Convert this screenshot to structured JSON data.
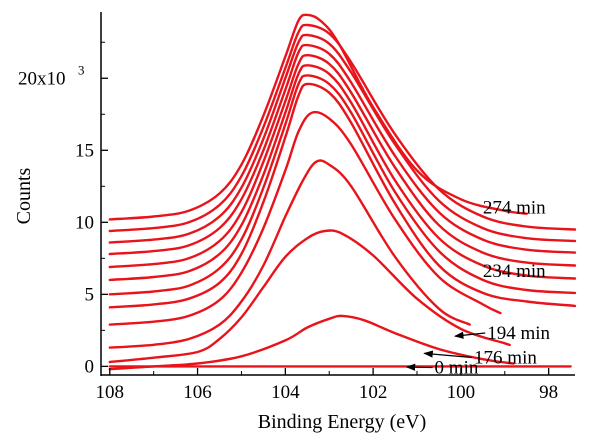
{
  "chart_data": {
    "type": "line",
    "title": "",
    "xlabel": "Binding Energy (eV)",
    "ylabel": "Counts",
    "xlim": [
      108.2,
      97.4
    ],
    "ylim": [
      -0.6,
      24.6
    ],
    "x_reversed": true,
    "grid": false,
    "line_color": "#e8141b",
    "x_ticks": [
      {
        "value": 108,
        "label": "108"
      },
      {
        "value": 106,
        "label": "106"
      },
      {
        "value": 104,
        "label": "104"
      },
      {
        "value": 102,
        "label": "102"
      },
      {
        "value": 100,
        "label": "100"
      },
      {
        "value": 98,
        "label": "98"
      }
    ],
    "y_ticks": [
      {
        "value": 0,
        "label": "0"
      },
      {
        "value": 5,
        "label": "5"
      },
      {
        "value": 10,
        "label": "10"
      },
      {
        "value": 15,
        "label": "15"
      }
    ],
    "y_top_tick": {
      "value": 20,
      "label_main": "20x10",
      "label_exp": "3"
    },
    "series": [
      {
        "x": [
          108,
          107,
          106,
          105,
          104,
          103,
          102,
          101,
          100,
          99,
          98,
          97.5
        ],
        "y": [
          0.0,
          0.0,
          0.0,
          0.0,
          0.0,
          0.0,
          0.0,
          0.0,
          0.0,
          0.0,
          0.0,
          0.0
        ]
      },
      {
        "x": [
          108,
          107,
          106,
          105,
          104,
          103.5,
          103,
          102.7,
          102.2,
          101.5,
          100.5,
          99.5,
          98.8
        ],
        "y": [
          -0.2,
          0.0,
          0.2,
          0.7,
          1.8,
          2.7,
          3.3,
          3.5,
          3.2,
          2.3,
          1.2,
          0.5,
          0.2
        ]
      },
      {
        "x": [
          108,
          107,
          106,
          105.5,
          105,
          104.5,
          104,
          103.5,
          103.1,
          102.7,
          102,
          101,
          100,
          99,
          98.9
        ],
        "y": [
          0.3,
          0.6,
          1.0,
          1.9,
          3.4,
          5.5,
          7.6,
          8.9,
          9.4,
          9.2,
          7.7,
          4.7,
          2.6,
          1.6,
          1.5
        ]
      },
      {
        "x": [
          108,
          107,
          106.2,
          105.5,
          105,
          104.5,
          104,
          103.6,
          103.3,
          103,
          102.5,
          101.5,
          100.5,
          99.8
        ],
        "y": [
          1.3,
          1.5,
          1.9,
          2.9,
          4.5,
          7.0,
          10.4,
          12.9,
          14.2,
          14.0,
          12.5,
          7.6,
          4.0,
          2.9
        ]
      },
      {
        "x": [
          108,
          107,
          106.2,
          105.5,
          105,
          104.5,
          104,
          103.7,
          103.4,
          103,
          102.5,
          101.5,
          100.5,
          99.5,
          99.1
        ],
        "y": [
          2.9,
          3.1,
          3.5,
          4.6,
          6.5,
          9.6,
          13.6,
          16.3,
          17.6,
          17.2,
          15.4,
          10.2,
          6.2,
          4.3,
          3.7
        ]
      },
      {
        "x": [
          108,
          107,
          106.2,
          105.5,
          105,
          104.5,
          104,
          103.7,
          103.5,
          103,
          102.5,
          101.5,
          100.5,
          99.5,
          98.5,
          97.4
        ],
        "y": [
          4.1,
          4.3,
          4.7,
          5.8,
          7.8,
          11.4,
          15.9,
          18.8,
          19.6,
          19.0,
          16.9,
          11.3,
          7.0,
          5.1,
          4.5,
          4.2
        ]
      },
      {
        "x": [
          108,
          107,
          106.2,
          105.5,
          105,
          104.5,
          104,
          103.7,
          103.5,
          103,
          102.5,
          101.5,
          100.5,
          99.5,
          98.5,
          97.4
        ],
        "y": [
          5.0,
          5.2,
          5.6,
          6.8,
          8.8,
          12.4,
          16.8,
          19.6,
          20.2,
          19.6,
          17.6,
          12.1,
          8.0,
          6.0,
          5.3,
          5.1
        ]
      },
      {
        "x": [
          108,
          107,
          106.2,
          105.5,
          105,
          104.5,
          104,
          103.7,
          103.5,
          103,
          102.5,
          101.5,
          100.5,
          99.5,
          98.5,
          97.4
        ],
        "y": [
          6.0,
          6.2,
          6.6,
          7.8,
          9.8,
          13.3,
          17.6,
          20.3,
          20.9,
          20.3,
          18.3,
          12.9,
          8.9,
          7.0,
          6.3,
          6.1
        ]
      },
      {
        "x": [
          108,
          107,
          106.2,
          105.5,
          105,
          104.5,
          104,
          103.7,
          103.5,
          103,
          102.5,
          101.5,
          100.5,
          99.5,
          98.5,
          97.4
        ],
        "y": [
          6.9,
          7.1,
          7.5,
          8.7,
          10.7,
          14.2,
          18.4,
          21.0,
          21.6,
          21.0,
          19.0,
          13.8,
          9.8,
          7.9,
          7.2,
          7.0
        ]
      },
      {
        "x": [
          108,
          107,
          106.2,
          105.5,
          105,
          104.5,
          104,
          103.7,
          103.5,
          103,
          102.5,
          101.5,
          100.5,
          99.5,
          98.5,
          97.4
        ],
        "y": [
          7.8,
          8.0,
          8.4,
          9.6,
          11.6,
          15.0,
          19.2,
          21.8,
          22.3,
          21.7,
          19.7,
          14.6,
          10.7,
          8.8,
          8.1,
          7.9
        ]
      },
      {
        "x": [
          108,
          107,
          106.2,
          105.5,
          105,
          104.5,
          104,
          103.7,
          103.5,
          103,
          102.5,
          101.5,
          100.5,
          99.5,
          98.5,
          97.4
        ],
        "y": [
          8.6,
          8.8,
          9.2,
          10.4,
          12.4,
          15.8,
          20.0,
          22.5,
          23.0,
          22.4,
          20.4,
          15.4,
          11.5,
          9.6,
          8.9,
          8.7
        ]
      },
      {
        "x": [
          108,
          107,
          106.2,
          105.5,
          105,
          104.5,
          104,
          103.7,
          103.5,
          103,
          102.5,
          101.5,
          100.5,
          99.5,
          98.5,
          97.4
        ],
        "y": [
          9.4,
          9.6,
          10.0,
          11.2,
          13.2,
          16.6,
          20.7,
          23.2,
          23.7,
          23.1,
          21.1,
          16.1,
          12.3,
          10.4,
          9.7,
          9.5
        ]
      },
      {
        "x": [
          108,
          107,
          106.2,
          105.5,
          105,
          104.5,
          104,
          103.7,
          103.5,
          103.2,
          102.8,
          102,
          101,
          100,
          99,
          98.5
        ],
        "y": [
          10.2,
          10.4,
          10.8,
          12.0,
          14.0,
          17.4,
          21.5,
          24.0,
          24.4,
          24.0,
          22.5,
          18.0,
          13.6,
          11.6,
          10.8,
          10.6
        ]
      }
    ],
    "annotations": [
      {
        "text": "274 min",
        "point": [
          99.5,
          10.6
        ],
        "label_at": [
          99.5,
          10.6
        ],
        "arrow": false
      },
      {
        "text": "234 min",
        "point": [
          99.5,
          6.2
        ],
        "label_at": [
          99.5,
          6.2
        ],
        "arrow": false
      },
      {
        "text": "194 min",
        "point": [
          100.2,
          2.1
        ],
        "label_at": [
          99.4,
          1.9
        ],
        "arrow": true
      },
      {
        "text": "176 min",
        "point": [
          100.9,
          0.9
        ],
        "label_at": [
          99.7,
          0.2
        ],
        "arrow": true
      },
      {
        "text": "0 min",
        "point": [
          101.3,
          -0.05
        ],
        "label_at": [
          100.6,
          -0.5
        ],
        "arrow": true
      }
    ]
  }
}
